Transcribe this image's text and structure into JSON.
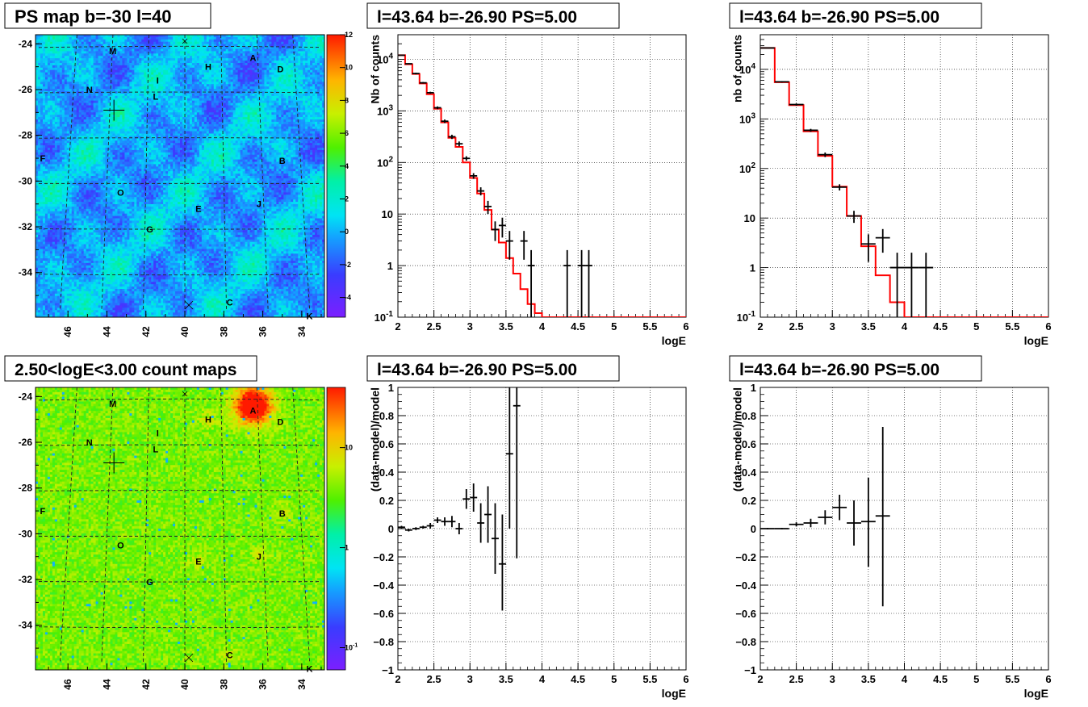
{
  "panels": {
    "map1": {
      "title": "PS map b=-30 l=40",
      "palette_labels": [
        "12",
        "10",
        "8",
        "6",
        "4",
        "2",
        "0",
        "-2",
        "-4"
      ],
      "palette_values": [
        12,
        10,
        8,
        6,
        4,
        2,
        0,
        -2,
        -4
      ],
      "zmin": -5.2,
      "zmax": 12,
      "xtick_labels": [
        "46",
        "44",
        "42",
        "40",
        "38",
        "36",
        "34"
      ],
      "ytick_labels": [
        "-24",
        "-26",
        "-28",
        "-30",
        "-32",
        "-34"
      ],
      "sources": [
        "M",
        "H",
        "A",
        "D",
        "N",
        "I",
        "L",
        "F",
        "B",
        "O",
        "E",
        "J",
        "G",
        "C",
        "K"
      ]
    },
    "map2": {
      "title": "2.50<logE<3.00 count maps",
      "palette_labels": [
        "10",
        "1",
        "10"
      ],
      "palette_sup": [
        "",
        "",
        "-1"
      ],
      "palette_values": [
        10,
        1,
        0.1
      ],
      "zmin": 0.06,
      "zmax": 40,
      "xtick_labels": [
        "46",
        "44",
        "42",
        "40",
        "38",
        "36",
        "34"
      ],
      "ytick_labels": [
        "-24",
        "-26",
        "-28",
        "-30",
        "-32",
        "-34"
      ],
      "sources": [
        "M",
        "H",
        "A",
        "D",
        "N",
        "I",
        "L",
        "F",
        "B",
        "O",
        "E",
        "J",
        "G",
        "C",
        "K"
      ]
    },
    "spec1": {
      "title": "l=43.64 b=-26.90 PS=5.00",
      "ylabel": "Nb of counts",
      "xlabel": "logE"
    },
    "spec2": {
      "title": "l=43.64 b=-26.90 PS=5.00",
      "ylabel": "nb of counts",
      "xlabel": "logE"
    },
    "res1": {
      "title": "l=43.64 b=-26.90 PS=5.00",
      "ylabel": "(data-model)/model",
      "xlabel": "logE"
    },
    "res2": {
      "title": "l=43.64 b=-26.90 PS=5.00",
      "ylabel": "(data-model)/model",
      "xlabel": "logE"
    }
  },
  "log_ticks": [
    "1",
    "10"
  ],
  "log_pow_base": "10",
  "log_pow_exps": [
    "-1",
    "2",
    "3",
    "4"
  ],
  "chart_data": [
    {
      "type": "line",
      "panel": "spec1",
      "title": "l=43.64 b=-26.90 PS=5.00",
      "xlabel": "logE",
      "ylabel": "Nb of counts",
      "xlim": [
        2,
        6
      ],
      "ylim": [
        0.1,
        30000
      ],
      "yscale": "log",
      "grid": true,
      "xticks": [
        "2",
        "2.5",
        "3",
        "3.5",
        "4",
        "4.5",
        "5",
        "5.5",
        "6"
      ],
      "series": [
        {
          "kind": "model-step",
          "edges": [
            2,
            2.1,
            2.2,
            2.3,
            2.4,
            2.5,
            2.6,
            2.7,
            2.8,
            2.9,
            3,
            3.1,
            3.2,
            3.3,
            3.4,
            3.5,
            3.6,
            3.7,
            3.8,
            3.9,
            4,
            4.1,
            4.2,
            4.3,
            4.4,
            4.5,
            4.6,
            4.7,
            4.8,
            4.9,
            5,
            5.1,
            5.2,
            5.3,
            5.4,
            5.5,
            5.6,
            5.7,
            5.8,
            5.9,
            6
          ],
          "values": [
            12000,
            8000,
            5200,
            3400,
            2100,
            1100,
            600,
            300,
            200,
            100,
            50,
            25,
            12,
            5,
            2.8,
            1.4,
            0.7,
            0.35,
            0.18,
            0.12,
            0.1,
            0.1,
            0.1,
            0.1,
            0.1,
            0.1,
            0.1,
            0.1,
            0.1,
            0.1,
            0.1,
            0.1,
            0.1,
            0.1,
            0.1,
            0.1,
            0.1,
            0.1,
            0.1,
            0.1
          ]
        },
        {
          "kind": "data",
          "points": [
            {
              "x": 2.05,
              "y": 12000,
              "ylo": 11800,
              "yhi": 12200
            },
            {
              "x": 2.15,
              "y": 8200,
              "ylo": 8000,
              "yhi": 8400
            },
            {
              "x": 2.25,
              "y": 5300,
              "ylo": 5100,
              "yhi": 5500
            },
            {
              "x": 2.35,
              "y": 3500,
              "ylo": 3380,
              "yhi": 3620
            },
            {
              "x": 2.45,
              "y": 2250,
              "ylo": 2150,
              "yhi": 2350
            },
            {
              "x": 2.55,
              "y": 1150,
              "ylo": 1080,
              "yhi": 1220
            },
            {
              "x": 2.65,
              "y": 630,
              "ylo": 580,
              "yhi": 680
            },
            {
              "x": 2.75,
              "y": 315,
              "ylo": 285,
              "yhi": 345
            },
            {
              "x": 2.85,
              "y": 230,
              "ylo": 205,
              "yhi": 255
            },
            {
              "x": 2.95,
              "y": 120,
              "ylo": 108,
              "yhi": 132
            },
            {
              "x": 3.05,
              "y": 55,
              "ylo": 48,
              "yhi": 62
            },
            {
              "x": 3.15,
              "y": 28,
              "ylo": 23,
              "yhi": 33
            },
            {
              "x": 3.25,
              "y": 14,
              "ylo": 10,
              "yhi": 18
            },
            {
              "x": 3.35,
              "y": 5,
              "ylo": 3,
              "yhi": 7.2
            },
            {
              "x": 3.45,
              "y": 6,
              "ylo": 3.5,
              "yhi": 8.5
            },
            {
              "x": 3.55,
              "y": 3,
              "ylo": 1.3,
              "yhi": 4.7
            },
            {
              "x": 3.75,
              "y": 3,
              "ylo": 1.3,
              "yhi": 4.7
            },
            {
              "x": 3.85,
              "y": 1,
              "ylo": 0.1,
              "yhi": 2
            },
            {
              "x": 4.35,
              "y": 1,
              "ylo": 0.1,
              "yhi": 2
            },
            {
              "x": 4.55,
              "y": 1,
              "ylo": 0.1,
              "yhi": 2
            },
            {
              "x": 4.65,
              "y": 1,
              "ylo": 0.1,
              "yhi": 2
            }
          ]
        }
      ]
    },
    {
      "type": "line",
      "panel": "spec2",
      "title": "l=43.64 b=-26.90 PS=5.00",
      "xlabel": "logE",
      "ylabel": "nb of counts",
      "xlim": [
        2,
        6
      ],
      "ylim": [
        0.1,
        50000
      ],
      "yscale": "log",
      "grid": true,
      "xticks": [
        "2",
        "2.5",
        "3",
        "3.5",
        "4",
        "4.5",
        "5",
        "5.5",
        "6"
      ],
      "series": [
        {
          "kind": "model-step",
          "edges": [
            2,
            2.2,
            2.4,
            2.6,
            2.8,
            3,
            3.2,
            3.4,
            3.6,
            3.8,
            4,
            4.2,
            4.4,
            4.6,
            4.8,
            5,
            5.2,
            5.4,
            5.6,
            5.8,
            6
          ],
          "values": [
            27000,
            5500,
            1900,
            560,
            180,
            43,
            11,
            2.7,
            0.7,
            0.2,
            0.1,
            0.1,
            0.1,
            0.1,
            0.1,
            0.1,
            0.1,
            0.1,
            0.1,
            0.1
          ]
        },
        {
          "kind": "data",
          "points": [
            {
              "x": 2.1,
              "y": 27000,
              "ylo": 26500,
              "yhi": 27500
            },
            {
              "x": 2.3,
              "y": 5600,
              "ylo": 5400,
              "yhi": 5800
            },
            {
              "x": 2.5,
              "y": 1950,
              "ylo": 1850,
              "yhi": 2050
            },
            {
              "x": 2.7,
              "y": 590,
              "ylo": 550,
              "yhi": 630
            },
            {
              "x": 2.9,
              "y": 190,
              "ylo": 170,
              "yhi": 210
            },
            {
              "x": 3.1,
              "y": 42,
              "ylo": 36,
              "yhi": 48
            },
            {
              "x": 3.3,
              "y": 11,
              "ylo": 8,
              "yhi": 14
            },
            {
              "x": 3.5,
              "y": 3,
              "ylo": 1.3,
              "yhi": 4.7
            },
            {
              "x": 3.7,
              "y": 4,
              "ylo": 2,
              "yhi": 6
            },
            {
              "x": 3.9,
              "y": 1,
              "ylo": 0.1,
              "yhi": 2
            },
            {
              "x": 4.1,
              "y": 1,
              "ylo": 0.1,
              "yhi": 2
            },
            {
              "x": 4.3,
              "y": 1,
              "ylo": 0.1,
              "yhi": 2
            }
          ]
        }
      ]
    },
    {
      "type": "scatter",
      "panel": "res1",
      "title": "l=43.64 b=-26.90 PS=5.00",
      "xlabel": "logE",
      "ylabel": "(data-model)/model",
      "xlim": [
        2,
        6
      ],
      "ylim": [
        -1,
        1
      ],
      "grid": true,
      "xticks": [
        "2",
        "2.5",
        "3",
        "3.5",
        "4",
        "4.5",
        "5",
        "5.5",
        "6"
      ],
      "yticks": [
        "−1",
        "−0.8",
        "−0.6",
        "−0.4",
        "−0.2",
        "0",
        "0.2",
        "0.4",
        "0.6",
        "0.8",
        "1"
      ],
      "points": [
        {
          "x": 2.05,
          "y": 0.01,
          "ylo": 0.0,
          "yhi": 0.02
        },
        {
          "x": 2.15,
          "y": -0.01,
          "ylo": -0.02,
          "yhi": 0.0
        },
        {
          "x": 2.25,
          "y": 0.0,
          "ylo": -0.01,
          "yhi": 0.01
        },
        {
          "x": 2.35,
          "y": 0.01,
          "ylo": 0.0,
          "yhi": 0.02
        },
        {
          "x": 2.45,
          "y": 0.02,
          "ylo": 0.0,
          "yhi": 0.04
        },
        {
          "x": 2.55,
          "y": 0.06,
          "ylo": 0.04,
          "yhi": 0.08
        },
        {
          "x": 2.65,
          "y": 0.05,
          "ylo": 0.02,
          "yhi": 0.08
        },
        {
          "x": 2.75,
          "y": 0.05,
          "ylo": 0.01,
          "yhi": 0.09
        },
        {
          "x": 2.85,
          "y": 0.0,
          "ylo": -0.04,
          "yhi": 0.04
        },
        {
          "x": 2.95,
          "y": 0.21,
          "ylo": 0.14,
          "yhi": 0.28
        },
        {
          "x": 3.05,
          "y": 0.22,
          "ylo": 0.12,
          "yhi": 0.32
        },
        {
          "x": 3.15,
          "y": 0.04,
          "ylo": -0.1,
          "yhi": 0.18
        },
        {
          "x": 3.25,
          "y": 0.1,
          "ylo": -0.1,
          "yhi": 0.3
        },
        {
          "x": 3.35,
          "y": -0.07,
          "ylo": -0.32,
          "yhi": 0.18
        },
        {
          "x": 3.45,
          "y": -0.25,
          "ylo": -0.58,
          "yhi": 0.1
        },
        {
          "x": 3.55,
          "y": 0.53,
          "ylo": 0.0,
          "yhi": 1.1
        },
        {
          "x": 3.65,
          "y": 0.87,
          "ylo": -0.21,
          "yhi": 1.1
        }
      ]
    },
    {
      "type": "scatter",
      "panel": "res2",
      "title": "l=43.64 b=-26.90 PS=5.00",
      "xlabel": "logE",
      "ylabel": "(data-model)/model",
      "xlim": [
        2,
        6
      ],
      "ylim": [
        -1,
        1
      ],
      "grid": true,
      "xticks": [
        "2",
        "2.5",
        "3",
        "3.5",
        "4",
        "4.5",
        "5",
        "5.5",
        "6"
      ],
      "yticks": [
        "−1",
        "−0.8",
        "−0.6",
        "−0.4",
        "−0.2",
        "0",
        "0.2",
        "0.4",
        "0.6",
        "0.8",
        "1"
      ],
      "points": [
        {
          "x": 2.1,
          "y": 0.0,
          "ylo": -0.005,
          "yhi": 0.005
        },
        {
          "x": 2.3,
          "y": 0.0,
          "ylo": -0.005,
          "yhi": 0.005
        },
        {
          "x": 2.5,
          "y": 0.03,
          "ylo": 0.015,
          "yhi": 0.045
        },
        {
          "x": 2.7,
          "y": 0.04,
          "ylo": 0.01,
          "yhi": 0.07
        },
        {
          "x": 2.9,
          "y": 0.08,
          "ylo": 0.03,
          "yhi": 0.13
        },
        {
          "x": 3.1,
          "y": 0.15,
          "ylo": 0.06,
          "yhi": 0.24
        },
        {
          "x": 3.3,
          "y": 0.04,
          "ylo": -0.12,
          "yhi": 0.2
        },
        {
          "x": 3.5,
          "y": 0.05,
          "ylo": -0.27,
          "yhi": 0.36
        },
        {
          "x": 3.7,
          "y": 0.09,
          "ylo": -0.55,
          "yhi": 0.72
        }
      ]
    }
  ]
}
